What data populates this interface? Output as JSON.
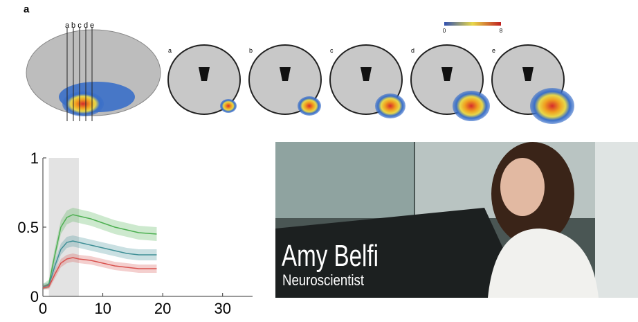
{
  "figure": {
    "label": "a",
    "slice_labels": [
      "a",
      "b",
      "c",
      "d",
      "e"
    ],
    "colorbar_ticks": [
      0,
      8
    ]
  },
  "chart_data": {
    "type": "line",
    "xlim": [
      0,
      35
    ],
    "ylim": [
      0,
      1
    ],
    "xticks": [
      0,
      10,
      20,
      30
    ],
    "yticks": [
      0,
      0.5,
      1
    ],
    "highlight": [
      1,
      6
    ],
    "x": [
      0,
      1,
      2,
      3,
      4,
      5,
      6,
      8,
      10,
      12,
      14,
      16,
      19
    ],
    "series": [
      {
        "color": "#4caf50",
        "values": [
          0.07,
          0.09,
          0.3,
          0.5,
          0.57,
          0.59,
          0.58,
          0.56,
          0.53,
          0.5,
          0.48,
          0.46,
          0.45
        ],
        "lower": [
          0.05,
          0.06,
          0.25,
          0.45,
          0.52,
          0.54,
          0.53,
          0.51,
          0.48,
          0.45,
          0.43,
          0.41,
          0.4
        ],
        "upper": [
          0.09,
          0.12,
          0.35,
          0.55,
          0.62,
          0.64,
          0.63,
          0.61,
          0.58,
          0.55,
          0.53,
          0.51,
          0.5
        ]
      },
      {
        "color": "#3f8f96",
        "values": [
          0.07,
          0.08,
          0.22,
          0.34,
          0.39,
          0.4,
          0.39,
          0.37,
          0.35,
          0.33,
          0.31,
          0.3,
          0.3
        ],
        "lower": [
          0.05,
          0.06,
          0.18,
          0.3,
          0.35,
          0.36,
          0.35,
          0.33,
          0.31,
          0.29,
          0.27,
          0.26,
          0.26
        ],
        "upper": [
          0.09,
          0.1,
          0.26,
          0.38,
          0.43,
          0.44,
          0.43,
          0.41,
          0.39,
          0.37,
          0.35,
          0.34,
          0.34
        ]
      },
      {
        "color": "#d9534f",
        "values": [
          0.06,
          0.07,
          0.16,
          0.24,
          0.27,
          0.28,
          0.27,
          0.26,
          0.24,
          0.22,
          0.21,
          0.2,
          0.2
        ],
        "lower": [
          0.05,
          0.05,
          0.13,
          0.21,
          0.24,
          0.25,
          0.24,
          0.23,
          0.21,
          0.19,
          0.18,
          0.17,
          0.17
        ],
        "upper": [
          0.08,
          0.09,
          0.19,
          0.27,
          0.3,
          0.31,
          0.3,
          0.29,
          0.27,
          0.25,
          0.24,
          0.23,
          0.23
        ]
      }
    ]
  },
  "video": {
    "name": "Amy Belfi",
    "role": "Neuroscientist"
  }
}
